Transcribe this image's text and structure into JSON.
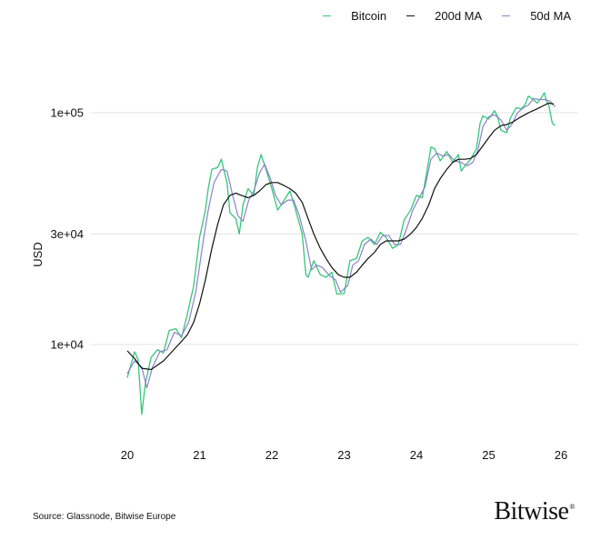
{
  "colors": {
    "bitcoin": "#34c77b",
    "ma200": "#111111",
    "ma50": "#8f7fc9",
    "grid": "#e3e3e3"
  },
  "source": "Source: Glassnode, Bitwise Europe",
  "logo": "Bitwise",
  "chart_data": {
    "type": "line",
    "title": "",
    "xlabel": "",
    "ylabel": "USD",
    "yscale": "log",
    "xlim": [
      19.5,
      26.2
    ],
    "ylim": [
      4000,
      160000
    ],
    "grid": true,
    "legend_position": "top-right",
    "xticks": [
      20,
      21,
      22,
      23,
      24,
      25,
      26
    ],
    "xtick_labels": [
      "20",
      "21",
      "22",
      "23",
      "24",
      "25",
      "26"
    ],
    "yticks": [
      10000,
      30000,
      100000
    ],
    "ytick_labels": [
      "1e+04",
      "3e+04",
      "1e+05"
    ],
    "series": [
      {
        "name": "Bitcoin",
        "color_key": "bitcoin",
        "x": [
          20.0,
          20.1,
          20.15,
          20.2,
          20.25,
          20.33,
          20.42,
          20.5,
          20.58,
          20.67,
          20.75,
          20.83,
          20.92,
          21.0,
          21.08,
          21.12,
          21.17,
          21.25,
          21.3,
          21.38,
          21.42,
          21.5,
          21.55,
          21.6,
          21.67,
          21.75,
          21.8,
          21.85,
          21.92,
          22.0,
          22.08,
          22.17,
          22.25,
          22.33,
          22.42,
          22.47,
          22.5,
          22.58,
          22.67,
          22.75,
          22.83,
          22.9,
          23.0,
          23.08,
          23.17,
          23.25,
          23.33,
          23.42,
          23.5,
          23.58,
          23.67,
          23.75,
          23.83,
          23.92,
          24.0,
          24.08,
          24.17,
          24.2,
          24.25,
          24.33,
          24.42,
          24.5,
          24.58,
          24.62,
          24.67,
          24.75,
          24.83,
          24.88,
          24.92,
          25.0,
          25.08,
          25.12,
          25.17,
          25.25,
          25.3,
          25.38,
          25.45,
          25.5,
          25.55,
          25.6,
          25.67,
          25.72,
          25.77,
          25.8,
          25.83,
          25.88,
          25.92
        ],
        "values": [
          7200,
          9300,
          8600,
          5000,
          6800,
          8800,
          9500,
          9200,
          11500,
          11700,
          10700,
          13500,
          18000,
          29000,
          38000,
          47000,
          57000,
          58000,
          63000,
          50000,
          37000,
          35000,
          30000,
          40000,
          47000,
          44000,
          58000,
          66000,
          57000,
          47000,
          38000,
          42000,
          46000,
          38000,
          30000,
          20000,
          19500,
          23000,
          20000,
          19500,
          20500,
          16500,
          16600,
          23000,
          23500,
          28000,
          29000,
          27000,
          30500,
          29000,
          26000,
          27000,
          34500,
          38000,
          44000,
          43000,
          62000,
          71000,
          70000,
          62000,
          68000,
          61000,
          66000,
          56000,
          59000,
          63000,
          70000,
          90000,
          97000,
          94000,
          102000,
          97000,
          84000,
          82000,
          95000,
          105000,
          104000,
          108000,
          118000,
          115000,
          110000,
          115000,
          122000,
          112000,
          108000,
          90000,
          88000
        ]
      },
      {
        "name": "200d MA",
        "color_key": "ma200",
        "x": [
          20.0,
          20.1,
          20.2,
          20.33,
          20.5,
          20.67,
          20.83,
          20.92,
          21.0,
          21.08,
          21.17,
          21.25,
          21.33,
          21.42,
          21.5,
          21.58,
          21.67,
          21.75,
          21.83,
          21.92,
          22.0,
          22.08,
          22.17,
          22.25,
          22.33,
          22.42,
          22.5,
          22.58,
          22.67,
          22.75,
          22.83,
          22.92,
          23.0,
          23.08,
          23.17,
          23.25,
          23.33,
          23.42,
          23.5,
          23.58,
          23.67,
          23.75,
          23.83,
          23.92,
          24.0,
          24.08,
          24.17,
          24.25,
          24.33,
          24.42,
          24.5,
          24.58,
          24.67,
          24.75,
          24.83,
          24.92,
          25.0,
          25.08,
          25.17,
          25.25,
          25.33,
          25.42,
          25.5,
          25.58,
          25.67,
          25.75,
          25.83,
          25.9
        ],
        "values": [
          9400,
          8700,
          7900,
          7800,
          8500,
          9700,
          11000,
          12500,
          15000,
          19000,
          26000,
          33000,
          40000,
          44000,
          45000,
          44000,
          43000,
          44000,
          46000,
          49000,
          50000,
          50000,
          48500,
          47000,
          45000,
          41000,
          35000,
          30000,
          26000,
          23500,
          21500,
          20000,
          19500,
          19500,
          20500,
          22000,
          23500,
          25000,
          27000,
          28000,
          28000,
          28000,
          28500,
          30000,
          32000,
          35000,
          40000,
          47000,
          52000,
          57000,
          61000,
          63000,
          63000,
          63500,
          66000,
          72000,
          78000,
          84000,
          88000,
          89000,
          91000,
          95000,
          98000,
          101000,
          104000,
          107000,
          110000,
          109000
        ]
      },
      {
        "name": "50d MA",
        "color_key": "ma50",
        "x": [
          20.0,
          20.1,
          20.2,
          20.27,
          20.35,
          20.45,
          20.55,
          20.65,
          20.75,
          20.85,
          20.95,
          21.05,
          21.12,
          21.2,
          21.3,
          21.38,
          21.45,
          21.53,
          21.6,
          21.68,
          21.75,
          21.83,
          21.9,
          21.98,
          22.05,
          22.13,
          22.22,
          22.3,
          22.38,
          22.47,
          22.55,
          22.62,
          22.7,
          22.8,
          22.88,
          22.95,
          23.05,
          23.12,
          23.2,
          23.28,
          23.37,
          23.45,
          23.53,
          23.62,
          23.7,
          23.78,
          23.87,
          23.95,
          24.03,
          24.12,
          24.2,
          24.28,
          24.37,
          24.45,
          24.53,
          24.62,
          24.7,
          24.78,
          24.85,
          24.92,
          25.0,
          25.08,
          25.17,
          25.25,
          25.32,
          25.4,
          25.48,
          25.55,
          25.62,
          25.7,
          25.78,
          25.85,
          25.92
        ],
        "values": [
          7500,
          8500,
          8000,
          6500,
          8000,
          9300,
          9500,
          11300,
          10900,
          12500,
          17000,
          28000,
          38000,
          50000,
          57000,
          56000,
          45000,
          36000,
          34000,
          42000,
          46000,
          55000,
          60000,
          52000,
          44000,
          40000,
          42000,
          42000,
          36000,
          28000,
          21000,
          22000,
          21500,
          19800,
          19000,
          16800,
          18000,
          22000,
          23000,
          27000,
          28500,
          27000,
          29500,
          29500,
          27000,
          27000,
          32000,
          38000,
          42500,
          48000,
          63000,
          67000,
          65000,
          66000,
          62000,
          61000,
          59000,
          61000,
          69000,
          87000,
          96000,
          98000,
          93000,
          84000,
          89000,
          100000,
          105000,
          108000,
          115000,
          114000,
          114000,
          112000,
          106000
        ]
      }
    ]
  }
}
